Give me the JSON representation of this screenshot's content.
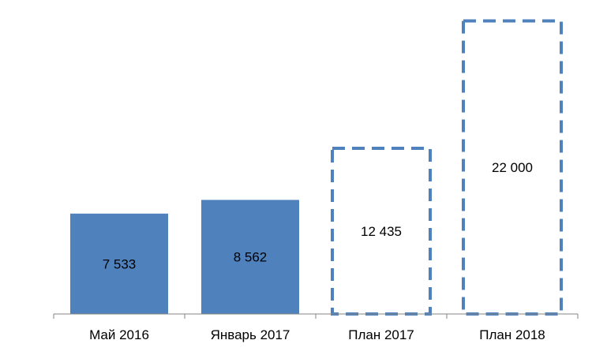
{
  "chart_data": {
    "type": "bar",
    "categories": [
      "Май 2016",
      "Январь 2017",
      "План 2017",
      "План 2018"
    ],
    "values": [
      7533,
      8562,
      12435,
      22000
    ],
    "value_labels": [
      "7 533",
      "8 562",
      "12 435",
      "22 000"
    ],
    "bar_style": [
      "solid",
      "solid",
      "dashed-outline",
      "dashed-outline"
    ],
    "ylim": [
      0,
      22500
    ],
    "grid": false,
    "legend": "none",
    "colors": {
      "bar_fill": "#4f81bd",
      "axis": "#868686"
    }
  }
}
